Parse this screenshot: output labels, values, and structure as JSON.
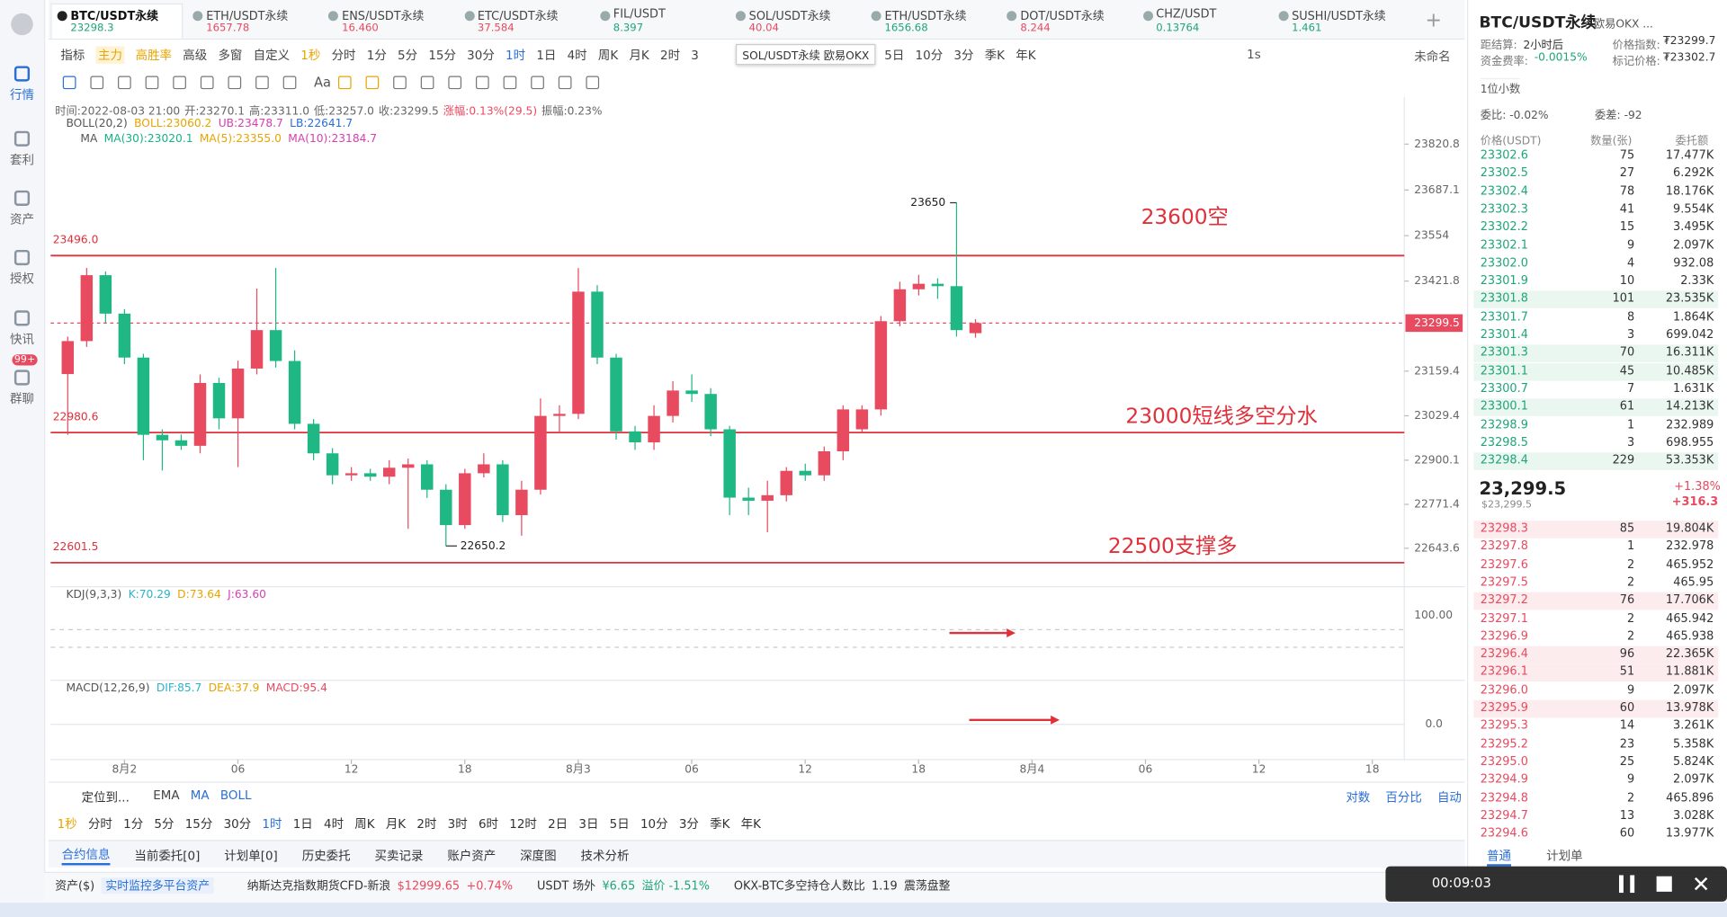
{
  "sidebar": {
    "items": [
      "行情",
      "套利",
      "资产",
      "授权",
      "快讯",
      "群聊"
    ],
    "badge": "99+"
  },
  "tabs": [
    {
      "name": "BTC/USDT永续",
      "price": "23298.3",
      "color": "#1fa57a"
    },
    {
      "name": "ETH/USDT永续",
      "price": "1657.78",
      "color": "#e84a5f"
    },
    {
      "name": "ENS/USDT永续",
      "price": "16.460",
      "color": "#e84a5f"
    },
    {
      "name": "ETC/USDT永续",
      "price": "37.584",
      "color": "#e84a5f"
    },
    {
      "name": "FIL/USDT",
      "price": "8.397",
      "color": "#1fa57a"
    },
    {
      "name": "SOL/USDT永续",
      "price": "40.04",
      "color": "#e84a5f"
    },
    {
      "name": "ETH/USDT永续",
      "price": "1656.68",
      "color": "#1fa57a"
    },
    {
      "name": "DOT/USDT永续",
      "price": "8.244",
      "color": "#e84a5f"
    },
    {
      "name": "CHZ/USDT",
      "price": "0.13764",
      "color": "#1fa57a"
    },
    {
      "name": "SUSHI/USDT永续",
      "price": "1.461",
      "color": "#1fa57a"
    }
  ],
  "toolbar": {
    "left": [
      "指标",
      "主力",
      "高胜率",
      "高级",
      "多窗",
      "自定义",
      "1秒",
      "分时",
      "1分",
      "5分",
      "15分",
      "30分",
      "1时",
      "1日",
      "4时",
      "周K",
      "月K",
      "2时",
      "3"
    ],
    "tooltip": "SOL/USDT永续 欧易OKX",
    "after": [
      "5日",
      "10分",
      "3分",
      "季K",
      "年K"
    ],
    "right": [
      "1s",
      "未命名"
    ],
    "tool_text": "Aa"
  },
  "chart_data": {
    "type": "candlestick",
    "info": [
      "时间:2022-08-03 21:00",
      "开:23270.1",
      "高:23311.0",
      "低:23257.0",
      "收:23299.5",
      "涨幅:0.13%(29.5)",
      "振幅:0.23%"
    ],
    "boll": [
      "BOLL(20,2)",
      "BOLL:23060.2",
      "UB:23478.7",
      "LB:22641.7"
    ],
    "ma": [
      "MA",
      "MA(30):23020.1",
      "MA(5):23355.0",
      "MA(10):23184.7"
    ],
    "x_labels": [
      "8月2",
      "06",
      "12",
      "18",
      "8月3",
      "06",
      "12",
      "18",
      "8月4",
      "06",
      "12",
      "18"
    ],
    "ylim": [
      22541,
      23952
    ],
    "yticks": [
      23820.8,
      23687.1,
      23554.0,
      23421.8,
      23159.4,
      23029.4,
      22900.1,
      22771.4,
      22643.6
    ],
    "last_price": 23299.5,
    "up_color": "#e84a5f",
    "down_color": "#1fb784",
    "candles": [
      [
        23151,
        23260,
        22974,
        23247
      ],
      [
        23247,
        23460,
        23230,
        23439
      ],
      [
        23439,
        23450,
        23300,
        23327
      ],
      [
        23327,
        23340,
        23180,
        23199
      ],
      [
        23199,
        23210,
        22900,
        22974
      ],
      [
        22974,
        22990,
        22870,
        22958
      ],
      [
        22958,
        22975,
        22930,
        22942
      ],
      [
        22942,
        23150,
        22920,
        23125
      ],
      [
        23125,
        23140,
        22990,
        23022
      ],
      [
        23022,
        23190,
        22880,
        23167
      ],
      [
        23167,
        23400,
        23150,
        23279
      ],
      [
        23279,
        23460,
        23170,
        23189
      ],
      [
        23189,
        23220,
        22990,
        23006
      ],
      [
        23006,
        23020,
        22900,
        22920
      ],
      [
        22920,
        22935,
        22830,
        22856
      ],
      [
        22856,
        22880,
        22840,
        22862
      ],
      [
        22862,
        22875,
        22840,
        22852
      ],
      [
        22852,
        22900,
        22830,
        22878
      ],
      [
        22878,
        22905,
        22700,
        22888
      ],
      [
        22888,
        22900,
        22790,
        22814
      ],
      [
        22814,
        22830,
        22650.2,
        22711
      ],
      [
        22711,
        22875,
        22700,
        22862
      ],
      [
        22862,
        22920,
        22850,
        22888
      ],
      [
        22888,
        22900,
        22720,
        22740
      ],
      [
        22740,
        22840,
        22680,
        22814
      ],
      [
        22814,
        23080,
        22800,
        23029
      ],
      [
        23029,
        23060,
        22980,
        23035
      ],
      [
        23035,
        23460,
        23020,
        23391
      ],
      [
        23391,
        23410,
        23180,
        23199
      ],
      [
        23199,
        23210,
        22960,
        22984
      ],
      [
        22984,
        23000,
        22930,
        22952
      ],
      [
        22952,
        23060,
        22930,
        23029
      ],
      [
        23029,
        23130,
        23010,
        23103
      ],
      [
        23103,
        23150,
        23070,
        23093
      ],
      [
        23093,
        23110,
        22970,
        22990
      ],
      [
        22990,
        23000,
        22740,
        22791
      ],
      [
        22791,
        22820,
        22740,
        22782
      ],
      [
        22782,
        22840,
        22690,
        22798
      ],
      [
        22798,
        22880,
        22780,
        22869
      ],
      [
        22869,
        22890,
        22840,
        22856
      ],
      [
        22856,
        22940,
        22840,
        22926
      ],
      [
        22926,
        23060,
        22900,
        23048
      ],
      [
        22990,
        23060,
        22980,
        23048
      ],
      [
        23048,
        23320,
        23030,
        23305
      ],
      [
        23305,
        23420,
        23290,
        23398
      ],
      [
        23398,
        23440,
        23380,
        23414
      ],
      [
        23414,
        23430,
        23370,
        23407
      ],
      [
        23407,
        23650,
        23260,
        23279
      ],
      [
        23270.1,
        23311.0,
        23257.0,
        23299.5
      ]
    ],
    "high_label": "23650",
    "low_label": "22650.2",
    "levels": [
      {
        "value": 23496.0,
        "label": "23496.0",
        "note": "23600空"
      },
      {
        "value": 22980.6,
        "label": "22980.6",
        "note": "23000短线多空分水"
      },
      {
        "value": 22601.5,
        "label": "22601.5",
        "note": "22500支撑多"
      }
    ],
    "kdj": {
      "title": "KDJ(9,3,3)",
      "k": "K:70.29",
      "d": "D:73.64",
      "j": "J:63.60",
      "tick": "100.00"
    },
    "macd": {
      "title": "MACD(12,26,9)",
      "dif": "DIF:85.7",
      "dea": "DEA:37.9",
      "macd": "MACD:95.4",
      "tick": "0.0"
    }
  },
  "bottom": {
    "locate": "定位到...",
    "indicators": [
      "EMA",
      "MA",
      "BOLL"
    ],
    "scale": [
      "对数",
      "百分比",
      "自动"
    ],
    "intervals": [
      "1秒",
      "分时",
      "1分",
      "5分",
      "15分",
      "30分",
      "1时",
      "1日",
      "4时",
      "周K",
      "月K",
      "2时",
      "3时",
      "6时",
      "12时",
      "2日",
      "3日",
      "5日",
      "10分",
      "3分",
      "季K",
      "年K"
    ],
    "tabs": [
      "合约信息",
      "当前委托[0]",
      "计划单[0]",
      "历史委托",
      "买卖记录",
      "账户资产",
      "深度图",
      "技术分析"
    ]
  },
  "status": {
    "assets": "资产($)",
    "monitor": "实时监控多平台资产",
    "nasdaq": "纳斯达克指数期货CFD-新浪",
    "nasdaq_price": "$12999.65",
    "nasdaq_change": "+0.74%",
    "usdt": "USDT 场外",
    "usdt_price": "¥6.65",
    "premium": "溢价 -1.51%",
    "ratio": "OKX-BTC多空持仓人数比",
    "ratio_value": "1.19",
    "ratio_state": "震荡盘整",
    "timer": "00:09:03"
  },
  "panel": {
    "title": "BTC/USDT永续",
    "exchange": "欧易OKX ...",
    "settle_label": "距结算:",
    "settle": "2小时后",
    "index_label": "价格指数:",
    "index": "₮23299.7",
    "funding_label": "资金费率:",
    "funding": "-0.0015%",
    "mark_label": "标记价格:",
    "mark": "₮23302.7",
    "decimals": "1位小数",
    "ratio": "委比: -0.02%",
    "diff": "委差: -92",
    "headers": [
      "价格(USDT)",
      "数量(张)",
      "委托额"
    ],
    "asks": [
      [
        "23302.6",
        "75",
        "17.477K"
      ],
      [
        "23302.5",
        "27",
        "6.292K"
      ],
      [
        "23302.4",
        "78",
        "18.176K"
      ],
      [
        "23302.3",
        "41",
        "9.554K"
      ],
      [
        "23302.2",
        "15",
        "3.495K"
      ],
      [
        "23302.1",
        "9",
        "2.097K"
      ],
      [
        "23302.0",
        "4",
        "932.08"
      ],
      [
        "23301.9",
        "10",
        "2.33K"
      ],
      [
        "23301.8",
        "101",
        "23.535K"
      ],
      [
        "23301.7",
        "8",
        "1.864K"
      ],
      [
        "23301.4",
        "3",
        "699.042"
      ],
      [
        "23301.3",
        "70",
        "16.311K"
      ],
      [
        "23301.1",
        "45",
        "10.485K"
      ],
      [
        "23300.7",
        "7",
        "1.631K"
      ],
      [
        "23300.1",
        "61",
        "14.213K"
      ],
      [
        "23298.9",
        "1",
        "232.989"
      ],
      [
        "23298.5",
        "3",
        "698.955"
      ],
      [
        "23298.4",
        "229",
        "53.353K"
      ]
    ],
    "last": "23,299.5",
    "last_usd": "$23,299.5",
    "change_pct": "+1.38%",
    "change": "+316.3",
    "bids": [
      [
        "23298.3",
        "85",
        "19.804K"
      ],
      [
        "23297.8",
        "1",
        "232.978"
      ],
      [
        "23297.6",
        "2",
        "465.952"
      ],
      [
        "23297.5",
        "2",
        "465.95"
      ],
      [
        "23297.2",
        "76",
        "17.706K"
      ],
      [
        "23297.1",
        "2",
        "465.942"
      ],
      [
        "23296.9",
        "2",
        "465.938"
      ],
      [
        "23296.4",
        "96",
        "22.365K"
      ],
      [
        "23296.1",
        "51",
        "11.881K"
      ],
      [
        "23296.0",
        "9",
        "2.097K"
      ],
      [
        "23295.9",
        "60",
        "13.978K"
      ],
      [
        "23295.3",
        "14",
        "3.261K"
      ],
      [
        "23295.2",
        "23",
        "5.358K"
      ],
      [
        "23295.0",
        "25",
        "5.824K"
      ],
      [
        "23294.9",
        "9",
        "2.097K"
      ],
      [
        "23294.8",
        "2",
        "465.896"
      ],
      [
        "23294.7",
        "13",
        "3.028K"
      ],
      [
        "23294.6",
        "60",
        "13.977K"
      ]
    ],
    "tabs": [
      "普通",
      "计划单"
    ]
  }
}
